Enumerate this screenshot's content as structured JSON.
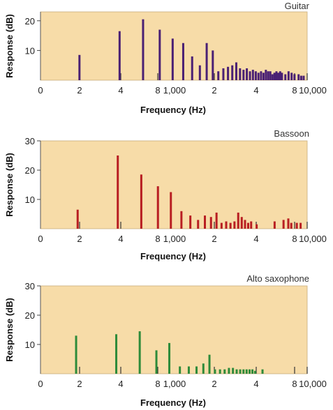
{
  "chart_data": [
    {
      "type": "bar",
      "title": "Guitar",
      "xlabel": "Frequency (Hz)",
      "ylabel": "Response (dB)",
      "xscale": "log",
      "xlim": [
        100,
        10000
      ],
      "ylim": [
        0,
        23
      ],
      "yticks": [
        10,
        20
      ],
      "xtick_labels": [
        "0",
        "2",
        "4",
        "8",
        "1,000",
        "2",
        "4",
        "8",
        "10,000"
      ],
      "color": "#4a2074",
      "x": [
        196,
        392,
        588,
        784,
        980,
        1176,
        1372,
        1568,
        1764,
        1960,
        2156,
        2352,
        2548,
        2744,
        2940,
        3136,
        3332,
        3528,
        3724,
        3920,
        4116,
        4312,
        4508,
        4704,
        4900,
        5096,
        5292,
        5488,
        5684,
        5880,
        6076,
        6272,
        6468,
        6860,
        7252,
        7644,
        8036,
        8624,
        9016,
        9408
      ],
      "values": [
        8.5,
        16.5,
        20.5,
        17,
        14,
        12.5,
        8,
        5,
        12.5,
        10,
        3,
        4,
        4.5,
        5,
        6,
        4,
        3.5,
        4,
        3,
        3.5,
        3,
        2.5,
        3,
        2.5,
        3.5,
        3,
        3,
        2,
        2.5,
        3,
        2.5,
        3,
        2.5,
        2,
        3,
        2.5,
        2,
        2,
        1.5,
        1.5
      ]
    },
    {
      "type": "bar",
      "title": "Bassoon",
      "xlabel": "Frequency (Hz)",
      "ylabel": "Response (dB)",
      "xscale": "log",
      "xlim": [
        100,
        10000
      ],
      "ylim": [
        0,
        30
      ],
      "yticks": [
        10,
        20,
        30
      ],
      "xtick_labels": [
        "0",
        "2",
        "4",
        "8",
        "1,000",
        "2",
        "4",
        "8",
        "10,000"
      ],
      "color": "#b81e22",
      "x": [
        190,
        380,
        570,
        760,
        950,
        1140,
        1330,
        1520,
        1710,
        1900,
        2090,
        2280,
        2470,
        2660,
        2850,
        3040,
        3230,
        3420,
        3610,
        3800,
        4180,
        5700,
        6650,
        7220,
        7600,
        8360,
        8930
      ],
      "values": [
        6.5,
        25,
        18.5,
        14.5,
        12.5,
        6,
        4.5,
        3,
        4.5,
        4,
        5.5,
        2,
        2.5,
        2,
        2.5,
        5.5,
        4,
        3,
        2,
        2.5,
        1.5,
        2.5,
        3,
        3.5,
        2,
        2,
        2
      ]
    },
    {
      "type": "bar",
      "title": "Alto saxophone",
      "xlabel": "Frequency (Hz)",
      "ylabel": "Response (dB)",
      "xscale": "log",
      "xlim": [
        100,
        10000
      ],
      "ylim": [
        0,
        30
      ],
      "yticks": [
        10,
        20,
        30
      ],
      "xtick_labels": [
        "0",
        "2",
        "4",
        "8",
        "1,000",
        "2",
        "4",
        "8",
        "10,000"
      ],
      "color": "#2e8b3a",
      "x": [
        185,
        370,
        555,
        740,
        925,
        1110,
        1295,
        1480,
        1665,
        1850,
        2035,
        2220,
        2405,
        2590,
        2775,
        2960,
        3145,
        3330,
        3515,
        3700,
        3885,
        4070,
        4625
      ],
      "values": [
        13,
        13.5,
        14.5,
        8,
        10.5,
        2.5,
        2.5,
        2.5,
        3.5,
        6.5,
        1.5,
        1.5,
        1.5,
        2,
        2,
        1.5,
        1.5,
        1.5,
        1.5,
        1.5,
        1.5,
        1,
        1.5
      ]
    }
  ]
}
